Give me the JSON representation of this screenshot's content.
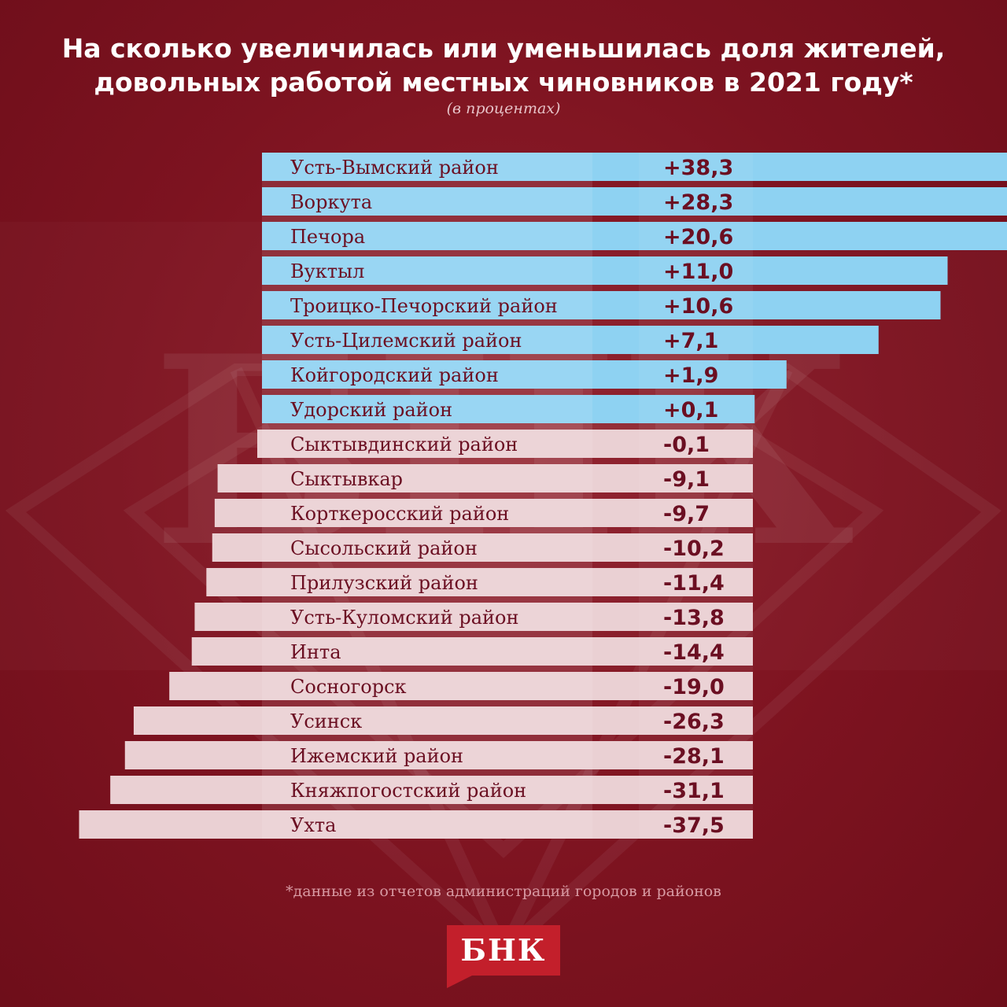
{
  "title_line1": "На сколько увеличилась или уменьшилась доля жителей,",
  "title_line2": "довольных работой местных чиновников в 2021 году*",
  "subtitle": "(в процентах)",
  "footnote": "*данные из отчетов администраций городов и районов",
  "logo_text": "БНК",
  "colors": {
    "background": "#7d1320",
    "positive_bar": "#8ed2f2",
    "negative_bar": "#ead0d3",
    "label_text": "#6b0f22",
    "logo": "#c31f2b"
  },
  "chart_data": {
    "type": "bar",
    "orientation": "horizontal",
    "categories": [
      "Усть-Вымский район",
      "Воркута",
      "Печора",
      "Вуктыл",
      "Троицко-Печорский район",
      "Усть-Цилемский район",
      "Койгородский район",
      "Удорский район",
      "Сыктывдинский район",
      "Сыктывкар",
      "Корткеросский район",
      "Сысольский район",
      "Прилузский район",
      "Усть-Куломский район",
      "Инта",
      "Сосногорск",
      "Усинск",
      "Ижемский район",
      "Княжпогостский район",
      "Ухта"
    ],
    "values": [
      38.3,
      28.3,
      20.6,
      11.0,
      10.6,
      7.1,
      1.9,
      0.1,
      -0.1,
      -9.1,
      -9.7,
      -10.2,
      -11.4,
      -13.8,
      -14.4,
      -19.0,
      -26.3,
      -28.1,
      -31.1,
      -37.5
    ],
    "value_labels": [
      "+38,3",
      "+28,3",
      "+20,6",
      "+11,0",
      "+10,6",
      "+7,1",
      "+1,9",
      "+0,1",
      "-0,1",
      "-9,1",
      "-9,7",
      "-10,2",
      "-11,4",
      "-13,8",
      "-14,4",
      "-19,0",
      "-26,3",
      "-28,1",
      "-31,1",
      "-37,5"
    ],
    "xlim": [
      -38,
      39
    ],
    "grid": false,
    "legend": false
  }
}
